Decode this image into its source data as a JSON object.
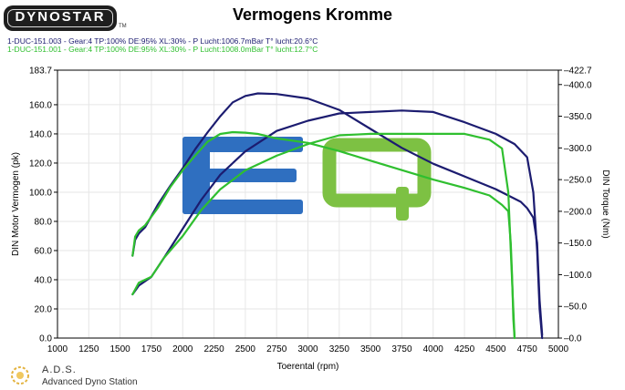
{
  "header": {
    "logo_text": "DYNOSTAR",
    "logo_tm": "TM",
    "title": "Vermogens Kromme",
    "runs": [
      {
        "text": "1-DUC-151.003 - Gear:4 TP:100% DE:95% XL:30%   - P Lucht:1006.7mBar T° lucht:20.6°C",
        "color": "#1c1c70"
      },
      {
        "text": "1-DUC-151.001 - Gear:4 TP:100% DE:95% XL:30%   - P Lucht:1008.0mBar T° lucht:12.7°C",
        "color": "#2fbf2f"
      }
    ]
  },
  "footer": {
    "name": "A.D.S.",
    "subtitle": "Advanced Dyno Station"
  },
  "watermark": {
    "letter_e": "E",
    "letter_q": "Q",
    "color_e": "#2f6fc0",
    "color_q": "#7dc143"
  },
  "chart_data": {
    "type": "line",
    "xlabel": "Toerental (rpm)",
    "ylabel_left": "DIN Motor Vermogen (pk)",
    "ylabel_right": "DIN Torque (Nm)",
    "xlim": [
      1000,
      5000
    ],
    "ylim_left": [
      0.0,
      183.7
    ],
    "ylim_right": [
      0.0,
      422.7
    ],
    "x_ticks": [
      1000,
      1250,
      1500,
      1750,
      2000,
      2250,
      2500,
      2750,
      3000,
      3250,
      3500,
      3750,
      4000,
      4250,
      4500,
      4750,
      5000
    ],
    "y_left_ticks": [
      "0.0",
      "20.0",
      "40.0",
      "60.0",
      "80.0",
      "100.0",
      "120.0",
      "140.0",
      "160.0",
      "183.7"
    ],
    "y_left_tick_values": [
      0,
      20,
      40,
      60,
      80,
      100,
      120,
      140,
      160,
      183.7
    ],
    "y_right_ticks": [
      "0.0",
      "50.0",
      "100.0",
      "150.0",
      "200.0",
      "250.0",
      "300.0",
      "350.0",
      "400.0",
      "422.7"
    ],
    "y_right_tick_values": [
      0,
      50,
      100,
      150,
      200,
      250,
      300,
      350,
      400,
      422.7
    ],
    "grid": true,
    "series": [
      {
        "name": "1-DUC-151.003",
        "color": "#1c1c70",
        "axis": "left",
        "quantity": "power",
        "x": [
          1600,
          1650,
          1750,
          1850,
          2000,
          2150,
          2300,
          2500,
          2750,
          3000,
          3250,
          3500,
          3750,
          4000,
          4250,
          4500,
          4650,
          4750,
          4800,
          4830,
          4850,
          4870
        ],
        "y": [
          30,
          36,
          42,
          55,
          75,
          95,
          112,
          128,
          142,
          149,
          154,
          155,
          156,
          155,
          148,
          140,
          133,
          124,
          100,
          60,
          20,
          0
        ]
      },
      {
        "name": "1-DUC-151.003",
        "color": "#1c1c70",
        "axis": "right",
        "quantity": "torque",
        "x": [
          1600,
          1620,
          1650,
          1700,
          1800,
          1900,
          2000,
          2100,
          2200,
          2300,
          2400,
          2500,
          2600,
          2750,
          3000,
          3250,
          3500,
          3750,
          4000,
          4250,
          4500,
          4700,
          4750,
          4800,
          4830,
          4850,
          4870
        ],
        "y": [
          130,
          155,
          165,
          175,
          210,
          240,
          268,
          298,
          325,
          350,
          372,
          382,
          386,
          385,
          378,
          360,
          330,
          300,
          275,
          255,
          235,
          215,
          205,
          190,
          150,
          60,
          5
        ]
      },
      {
        "name": "1-DUC-151.001",
        "color": "#2fbf2f",
        "axis": "left",
        "quantity": "power",
        "x": [
          1600,
          1650,
          1750,
          1850,
          2000,
          2150,
          2300,
          2500,
          2750,
          3000,
          3250,
          3500,
          3750,
          4000,
          4250,
          4450,
          4550,
          4600,
          4620,
          4640,
          4650
        ],
        "y": [
          30,
          38,
          42,
          55,
          70,
          88,
          102,
          115,
          125,
          133,
          139,
          140,
          140,
          140,
          140,
          136,
          130,
          100,
          60,
          20,
          0
        ]
      },
      {
        "name": "1-DUC-151.001",
        "color": "#2fbf2f",
        "axis": "right",
        "quantity": "torque",
        "x": [
          1600,
          1620,
          1650,
          1700,
          1800,
          1900,
          2000,
          2100,
          2200,
          2300,
          2400,
          2500,
          2600,
          2750,
          3000,
          3250,
          3500,
          3750,
          4000,
          4250,
          4450,
          4550,
          4600,
          4620,
          4630,
          4640,
          4650
        ],
        "y": [
          130,
          160,
          170,
          178,
          205,
          238,
          265,
          288,
          310,
          322,
          325,
          324,
          322,
          315,
          308,
          295,
          280,
          265,
          250,
          237,
          225,
          210,
          200,
          150,
          100,
          30,
          0
        ]
      }
    ]
  }
}
